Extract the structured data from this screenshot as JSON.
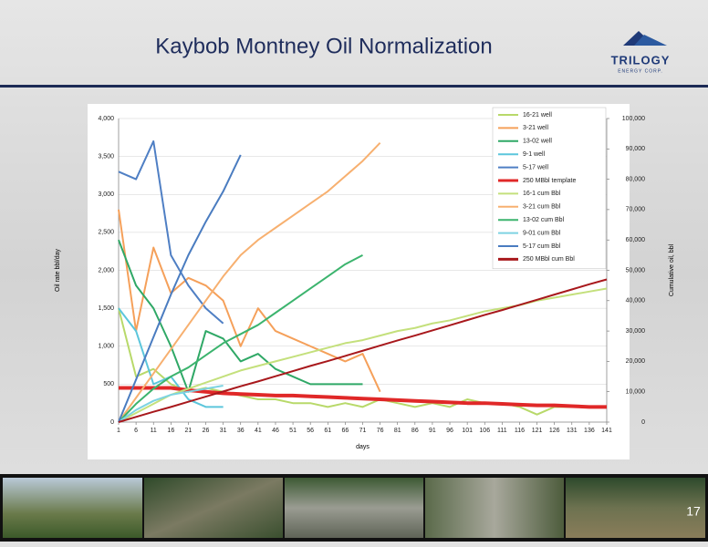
{
  "header": {
    "title": "Kaybob Montney Oil Normalization"
  },
  "logo": {
    "name": "TRILOGY",
    "subtitle": "ENERGY CORP."
  },
  "chart_data": {
    "type": "line",
    "y_label": "Oil rate bbl/day",
    "y2_label": "Cumulative oil, bbl",
    "x_label": "days",
    "x": [
      1,
      6,
      11,
      16,
      21,
      26,
      31,
      36,
      41,
      46,
      51,
      56,
      61,
      66,
      71,
      76,
      81,
      86,
      91,
      96,
      101,
      106,
      111,
      116,
      121,
      126,
      131,
      136,
      141
    ],
    "xlim": [
      1,
      141
    ],
    "xticks": [
      1,
      6,
      11,
      16,
      21,
      26,
      31,
      36,
      41,
      46,
      51,
      56,
      61,
      66,
      71,
      76,
      81,
      86,
      91,
      96,
      101,
      106,
      111,
      116,
      121,
      126,
      131,
      136,
      141
    ],
    "ylim": [
      0,
      4000
    ],
    "yticks": [
      0,
      500,
      {
        "value": 1000,
        "label": "1,000"
      },
      {
        "value": 1500,
        "label": "1,500"
      },
      {
        "value": 2000,
        "label": "2,000"
      },
      {
        "value": 2500,
        "label": "2,500"
      },
      {
        "value": 3000,
        "label": "3,000"
      },
      {
        "value": 3500,
        "label": "3,500"
      },
      {
        "value": 4000,
        "label": "4,000"
      }
    ],
    "y2lim": [
      0,
      100000
    ],
    "y2ticks": [
      0,
      {
        "value": 10000,
        "label": "10,000"
      },
      {
        "value": 20000,
        "label": "20,000"
      },
      {
        "value": 30000,
        "label": "30,000"
      },
      {
        "value": 40000,
        "label": "40,000"
      },
      {
        "value": 50000,
        "label": "50,000"
      },
      {
        "value": 60000,
        "label": "60,000"
      },
      {
        "value": 70000,
        "label": "70,000"
      },
      {
        "value": 80000,
        "label": "80,000"
      },
      {
        "value": 90000,
        "label": "90,000"
      },
      {
        "value": 100000,
        "label": "100,000"
      }
    ],
    "grid": true,
    "legend": "top-right",
    "series": [
      {
        "name": "16-21 well",
        "color": "#b8d96a",
        "values": [
          1500,
          600,
          700,
          500,
          400,
          450,
          400,
          350,
          300,
          300,
          250,
          250,
          200,
          250,
          200,
          300,
          250,
          200,
          250,
          200,
          300,
          250,
          250,
          200,
          100,
          200,
          200,
          200,
          200
        ]
      },
      {
        "name": "3-21 well",
        "color": "#f5a05a",
        "values": [
          2800,
          1200,
          2300,
          1700,
          1900,
          1800,
          1600,
          1000,
          1500,
          1200,
          1100,
          1000,
          900,
          800,
          900,
          400,
          null,
          null,
          null,
          null,
          null,
          null,
          null,
          null,
          null,
          null,
          null,
          null,
          null
        ]
      },
      {
        "name": "13-02 well",
        "color": "#2fa866",
        "values": [
          2400,
          1800,
          1500,
          1000,
          400,
          1200,
          1100,
          800,
          900,
          700,
          600,
          500,
          500,
          500,
          500,
          null,
          null,
          null,
          null,
          null,
          null,
          null,
          null,
          null,
          null,
          null,
          null,
          null,
          null
        ]
      },
      {
        "name": "9-1 well",
        "color": "#5cc6dc",
        "values": [
          1500,
          1200,
          500,
          600,
          300,
          200,
          200,
          null,
          null,
          null,
          null,
          null,
          null,
          null,
          null,
          null,
          null,
          null,
          null,
          null,
          null,
          null,
          null,
          null,
          null,
          null,
          null,
          null,
          null
        ]
      },
      {
        "name": "5-17 well",
        "color": "#4f7fc4",
        "values": [
          3300,
          3200,
          3700,
          2200,
          1800,
          1500,
          1300,
          null,
          null,
          null,
          null,
          null,
          null,
          null,
          null,
          null,
          null,
          null,
          null,
          null,
          null,
          null,
          null,
          null,
          null,
          null,
          null,
          null,
          null
        ]
      },
      {
        "name": "250 MBbl template",
        "color": "#e02828",
        "values": [
          450,
          450,
          450,
          450,
          420,
          400,
          380,
          370,
          360,
          350,
          350,
          340,
          330,
          320,
          310,
          300,
          290,
          280,
          270,
          260,
          250,
          250,
          240,
          230,
          220,
          220,
          210,
          200,
          200
        ]
      },
      {
        "name": "16-1 cum Bbl",
        "color": "#c4e07c",
        "axis": "y2",
        "values": [
          0,
          3000,
          6000,
          9000,
          11000,
          13000,
          15000,
          17000,
          18500,
          20000,
          21500,
          23000,
          24500,
          26000,
          27000,
          28500,
          30000,
          31000,
          32500,
          33500,
          35000,
          36500,
          37500,
          38500,
          40000,
          41000,
          42000,
          43000,
          44000
        ]
      },
      {
        "name": "3-21 cum Bbl",
        "color": "#f7b070",
        "axis": "y2",
        "values": [
          0,
          8000,
          16000,
          24000,
          32000,
          40000,
          48000,
          55000,
          60000,
          64000,
          68000,
          72000,
          76000,
          81000,
          86000,
          92000,
          null,
          null,
          null,
          null,
          null,
          null,
          null,
          null,
          null,
          null,
          null,
          null,
          null
        ]
      },
      {
        "name": "13-02 cum Bbl",
        "color": "#3cb46e",
        "axis": "y2",
        "values": [
          0,
          6000,
          11000,
          15000,
          18000,
          22000,
          26000,
          29000,
          32000,
          36000,
          40000,
          44000,
          48000,
          52000,
          55000,
          null,
          null,
          null,
          null,
          null,
          null,
          null,
          null,
          null,
          null,
          null,
          null,
          null,
          null
        ]
      },
      {
        "name": "9-01 cum Bbl",
        "color": "#7dd3e2",
        "axis": "y2",
        "values": [
          0,
          4000,
          7000,
          9000,
          10000,
          11000,
          12000,
          null,
          null,
          null,
          null,
          null,
          null,
          null,
          null,
          null,
          null,
          null,
          null,
          null,
          null,
          null,
          null,
          null,
          null,
          null,
          null,
          null,
          null
        ]
      },
      {
        "name": "5-17 cum Bbl",
        "color": "#4a7cc0",
        "axis": "y2",
        "values": [
          0,
          14000,
          28000,
          42000,
          55000,
          66000,
          76000,
          88000,
          null,
          null,
          null,
          null,
          null,
          null,
          null,
          null,
          null,
          null,
          null,
          null,
          null,
          null,
          null,
          null,
          null,
          null,
          null,
          null,
          null
        ]
      },
      {
        "name": "250 MBbl cum Bbl",
        "color": "#a8181c",
        "axis": "y2",
        "values": [
          0,
          1700,
          3400,
          5000,
          6700,
          8400,
          10100,
          11800,
          13400,
          15100,
          16800,
          18500,
          20100,
          21800,
          23500,
          25200,
          26900,
          28500,
          30200,
          31900,
          33600,
          35300,
          36900,
          38600,
          40300,
          42000,
          43700,
          45400,
          47000
        ]
      }
    ]
  },
  "footer": {
    "page_number": "17"
  }
}
